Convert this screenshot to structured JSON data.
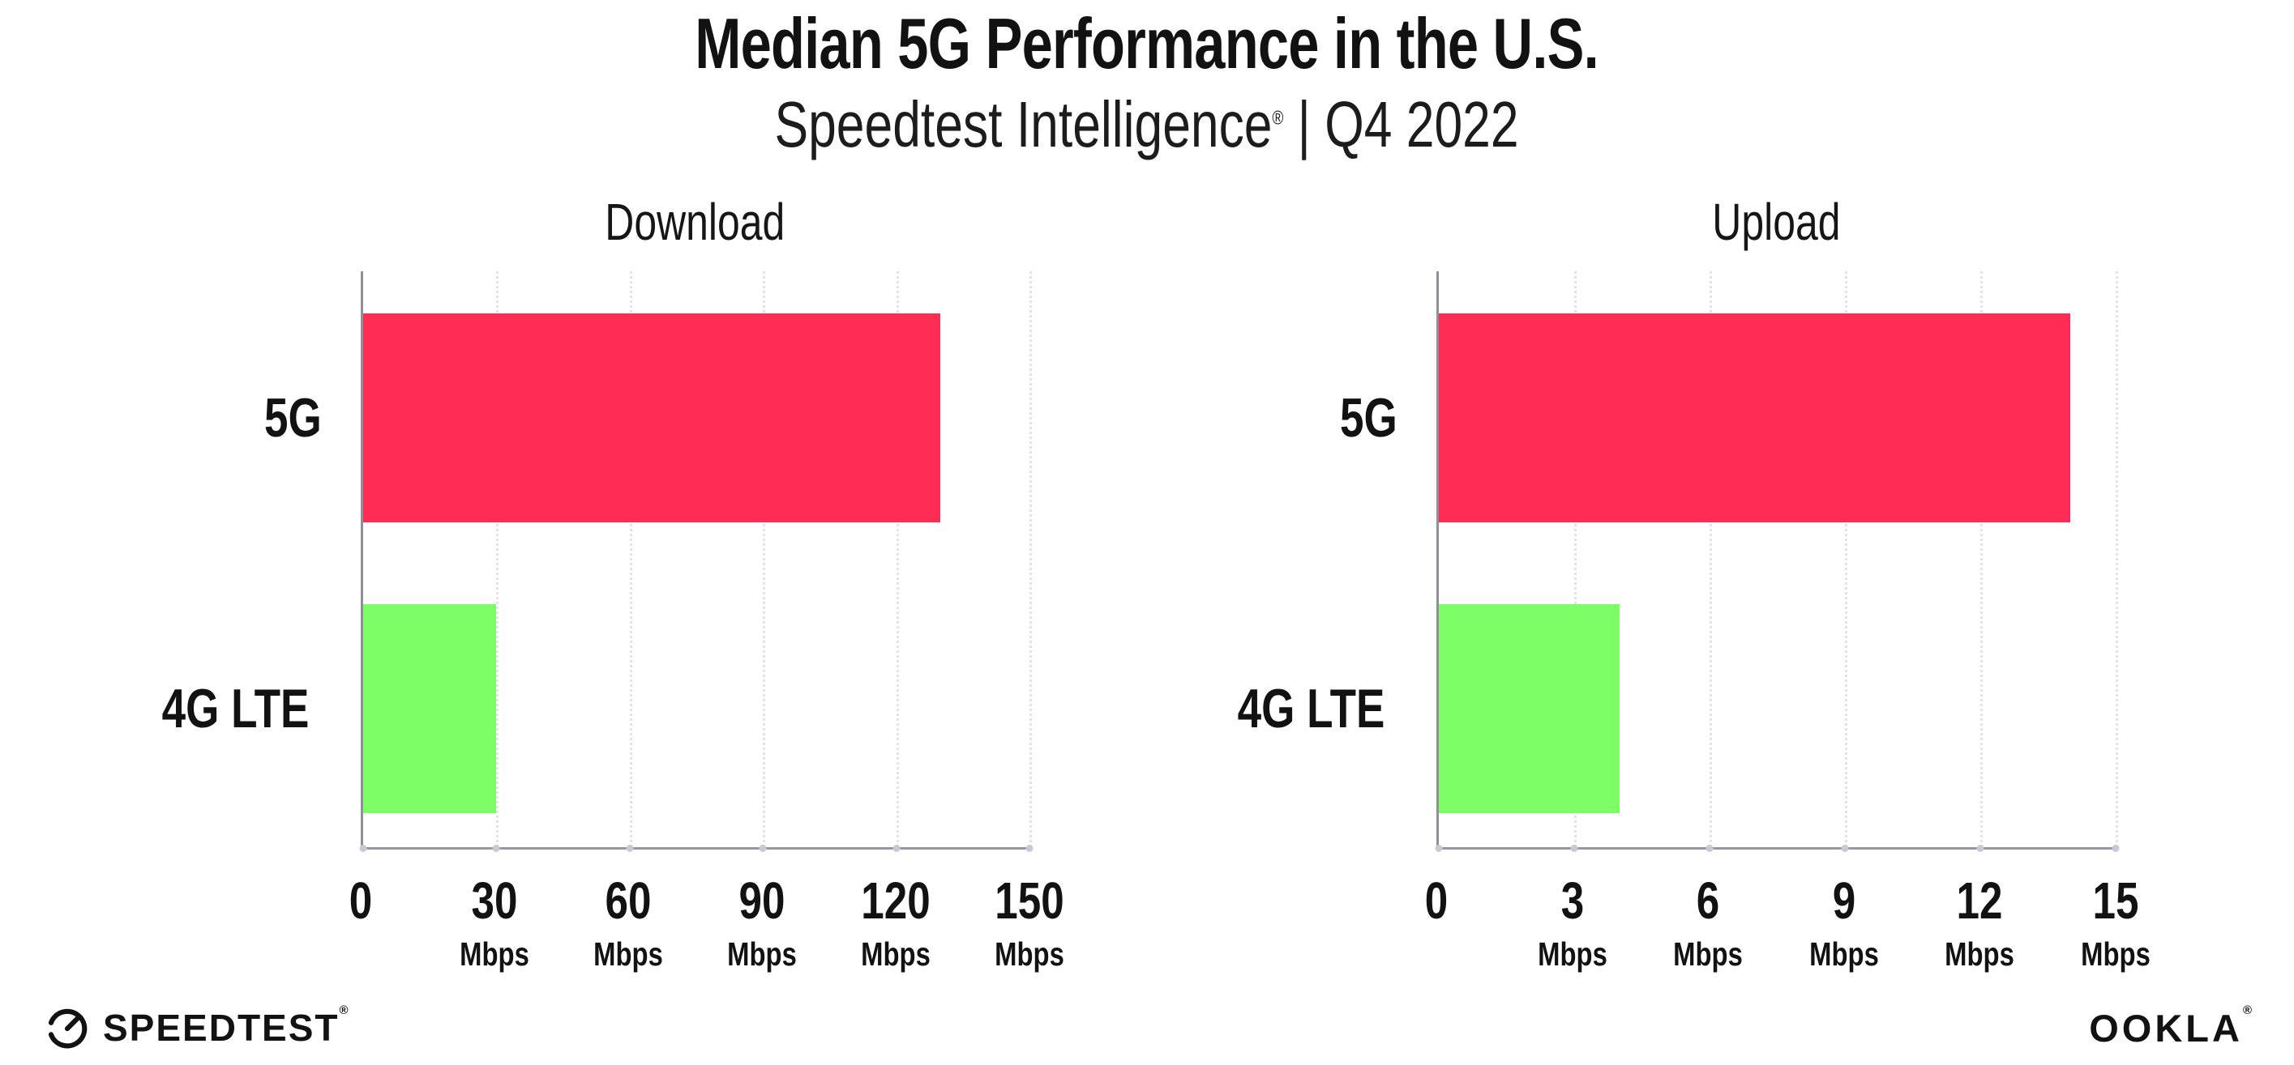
{
  "header": {
    "title": "Median 5G Performance in the U.S.",
    "subtitle_main": "Speedtest Intelligence",
    "subtitle_reg": "®",
    "subtitle_tail": " | Q4 2022"
  },
  "chart_data": [
    {
      "type": "bar",
      "orientation": "horizontal",
      "title": "Download",
      "categories": [
        "5G",
        "4G LTE"
      ],
      "values": [
        130,
        30
      ],
      "unit": "Mbps",
      "xlim": [
        0,
        150
      ],
      "xticks": [
        0,
        30,
        60,
        90,
        120,
        150
      ],
      "bar_colors": [
        "#ff2d55",
        "#7dfd66"
      ],
      "grid": "dotted-vertical",
      "legend": "none"
    },
    {
      "type": "bar",
      "orientation": "horizontal",
      "title": "Upload",
      "categories": [
        "5G",
        "4G LTE"
      ],
      "values": [
        14,
        4
      ],
      "unit": "Mbps",
      "xlim": [
        0,
        15
      ],
      "xticks": [
        0,
        3,
        6,
        9,
        12,
        15
      ],
      "bar_colors": [
        "#ff2d55",
        "#7dfd66"
      ],
      "grid": "dotted-vertical",
      "legend": "none"
    }
  ],
  "colors": {
    "bar_5g": "#ff2d55",
    "bar_4g_lte": "#7dfd66",
    "axis": "#97979e",
    "gridline": "#e2e2ec",
    "text": "#121212"
  },
  "footer": {
    "speedtest_label": "SPEEDTEST",
    "speedtest_mark": "®",
    "ookla_label": "OOKLA",
    "ookla_mark": "®"
  }
}
